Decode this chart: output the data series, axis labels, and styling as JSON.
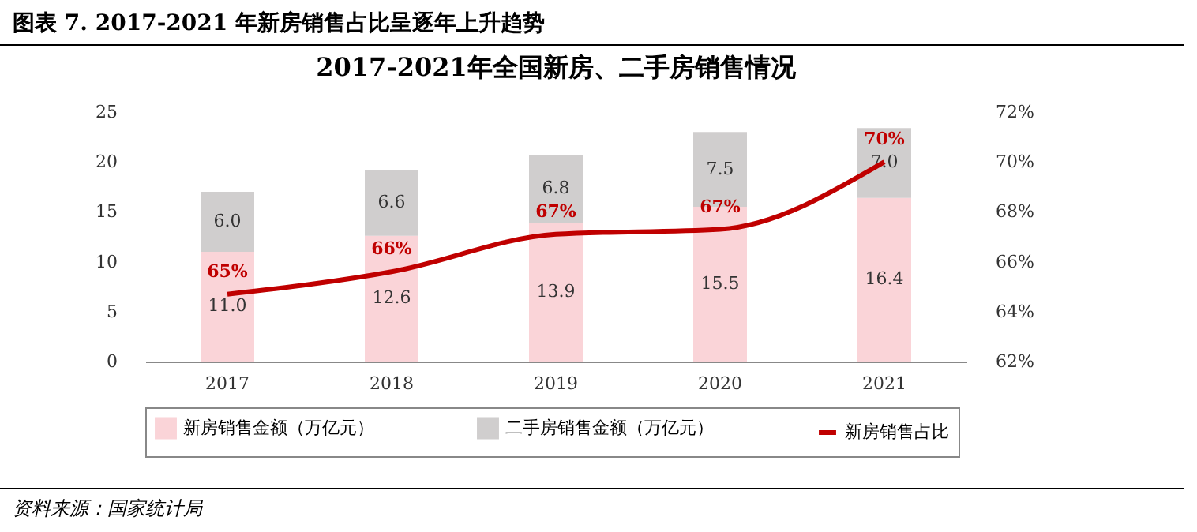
{
  "chart_data": {
    "type": "bar",
    "title": "图表 7. 2017-2021 年新房销售占比呈逐年上升趋势",
    "subtitle": "2017-2021年全国新房、二手房销售情况",
    "categories": [
      "2017",
      "2018",
      "2019",
      "2020",
      "2021"
    ],
    "stacked": true,
    "series": [
      {
        "name": "新房销售金额（万亿元）",
        "color": "#fad4d8",
        "values": [
          11.0,
          12.6,
          13.9,
          15.5,
          16.4
        ],
        "value_labels": [
          "11.0",
          "12.6",
          "13.9",
          "15.5",
          "16.4"
        ]
      },
      {
        "name": "二手房销售金额（万亿元）",
        "color": "#d0cece",
        "values": [
          6.0,
          6.6,
          6.8,
          7.5,
          7.0
        ],
        "value_labels": [
          "6.0",
          "6.6",
          "6.8",
          "7.5",
          "7.0"
        ]
      },
      {
        "name": "新房销售占比",
        "type": "line",
        "axis": "y2",
        "color": "#c00000",
        "values": [
          64.7,
          65.6,
          67.1,
          67.3,
          70.0
        ],
        "value_labels": [
          "65%",
          "66%",
          "67%",
          "67%",
          "70%"
        ]
      }
    ],
    "ylim": [
      0,
      25
    ],
    "yticks": [
      0,
      5,
      10,
      15,
      20,
      25
    ],
    "y2lim": [
      62,
      72
    ],
    "y2ticks": [
      {
        "value": 62,
        "label": "62%"
      },
      {
        "value": 64,
        "label": "64%"
      },
      {
        "value": 66,
        "label": "66%"
      },
      {
        "value": 68,
        "label": "68%"
      },
      {
        "value": 70,
        "label": "70%"
      },
      {
        "value": 72,
        "label": "72%"
      }
    ],
    "grid": false,
    "legend": "bottom",
    "marker": "none",
    "line_style": "solid",
    "annotations": [
      "资料来源：国家统计局"
    ]
  }
}
